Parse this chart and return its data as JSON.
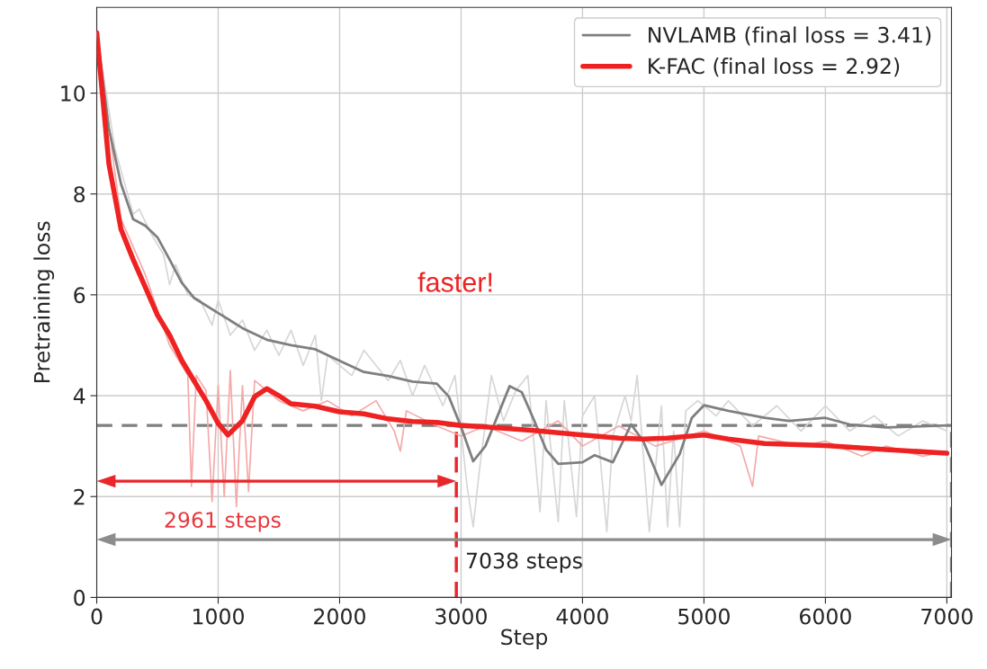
{
  "chart_data": {
    "type": "line",
    "xlabel": "Step",
    "ylabel": "Pretraining loss",
    "xlim": [
      0,
      7038
    ],
    "ylim": [
      0,
      11.7
    ],
    "xticks": [
      0,
      1000,
      2000,
      3000,
      4000,
      5000,
      6000,
      7000
    ],
    "yticks": [
      0,
      2,
      4,
      6,
      8,
      10
    ],
    "grid": true,
    "legend": "top right",
    "line_style": "solid",
    "marker": "none",
    "series": [
      {
        "color": "#d6d6d6",
        "x": [
          0,
          150,
          300,
          350,
          450,
          550,
          600,
          650,
          750,
          850,
          950,
          1000,
          1100,
          1200,
          1300,
          1400,
          1500,
          1600,
          1700,
          1800,
          1850,
          1900,
          2100,
          2200,
          2400,
          2500,
          2600,
          2700,
          2850,
          2950,
          3050,
          3100,
          3150,
          3250,
          3350,
          3450,
          3550,
          3650,
          3700,
          3800,
          3850,
          3950,
          4000,
          4100,
          4200,
          4250,
          4350,
          4400,
          4450,
          4550,
          4650,
          4700,
          4750,
          4800,
          4850,
          4950,
          5100,
          5200,
          5400,
          5600,
          5800,
          6000,
          6200,
          6400,
          6600,
          6800,
          7000
        ],
        "values": [
          11.2,
          8.9,
          7.6,
          7.7,
          7.2,
          6.8,
          6.2,
          6.6,
          6.0,
          5.9,
          5.4,
          5.9,
          5.2,
          5.5,
          4.9,
          5.3,
          4.8,
          5.3,
          4.6,
          5.2,
          3.9,
          4.8,
          4.4,
          4.9,
          4.3,
          4.7,
          4.0,
          4.6,
          3.8,
          4.4,
          2.2,
          1.4,
          2.5,
          4.4,
          3.5,
          4.1,
          4.4,
          1.7,
          3.9,
          1.5,
          3.9,
          1.6,
          3.6,
          4.0,
          1.3,
          3.2,
          4.0,
          3.5,
          4.4,
          1.3,
          3.8,
          1.4,
          3.3,
          1.4,
          3.7,
          3.9,
          3.6,
          3.9,
          3.4,
          3.8,
          3.3,
          3.8,
          3.3,
          3.6,
          3.2,
          3.5,
          3.3
        ]
      },
      {
        "color": "#f5a8a8",
        "x": [
          0,
          200,
          400,
          600,
          750,
          780,
          820,
          900,
          950,
          1000,
          1050,
          1100,
          1150,
          1200,
          1250,
          1300,
          1500,
          1700,
          1900,
          2100,
          2300,
          2450,
          2500,
          2550,
          2800,
          3000,
          3200,
          3500,
          3800,
          4000,
          4300,
          4600,
          5000,
          5300,
          5400,
          5450,
          5800,
          6000,
          6300,
          6500,
          6800,
          7000
        ],
        "values": [
          11.2,
          7.5,
          6.4,
          5.0,
          4.4,
          2.2,
          4.4,
          4.1,
          1.9,
          4.2,
          2.0,
          4.5,
          1.8,
          4.2,
          2.1,
          4.3,
          3.9,
          3.7,
          3.9,
          3.6,
          3.9,
          3.3,
          2.9,
          3.7,
          3.4,
          3.2,
          3.4,
          3.1,
          3.5,
          3.0,
          3.4,
          3.0,
          3.3,
          3.0,
          2.2,
          3.2,
          3.0,
          3.1,
          2.8,
          3.0,
          2.8,
          2.9
        ]
      },
      {
        "name": "NVLAMB (final loss = 3.41)",
        "color": "#7f7f7f",
        "x": [
          0,
          100,
          200,
          300,
          400,
          500,
          600,
          700,
          800,
          1000,
          1200,
          1400,
          1600,
          1800,
          2000,
          2200,
          2400,
          2600,
          2800,
          2900,
          3000,
          3100,
          3200,
          3400,
          3500,
          3600,
          3700,
          3800,
          4000,
          4100,
          4250,
          4400,
          4500,
          4650,
          4800,
          4900,
          5000,
          5200,
          5500,
          5700,
          6000,
          6200,
          6500,
          7000
        ],
        "values": [
          11.2,
          9.3,
          8.2,
          7.5,
          7.37,
          7.14,
          6.7,
          6.24,
          5.94,
          5.64,
          5.34,
          5.11,
          5.0,
          4.92,
          4.69,
          4.47,
          4.39,
          4.28,
          4.24,
          3.98,
          3.38,
          2.7,
          3.0,
          4.19,
          4.07,
          3.52,
          2.93,
          2.65,
          2.68,
          2.82,
          2.68,
          3.43,
          3.1,
          2.23,
          2.84,
          3.56,
          3.81,
          3.7,
          3.56,
          3.5,
          3.56,
          3.43,
          3.37,
          3.41
        ]
      },
      {
        "name": "K-FAC (final loss = 2.92)",
        "color": "#ee2222",
        "x": [
          0,
          100,
          200,
          300,
          400,
          500,
          600,
          700,
          800,
          900,
          1000,
          1080,
          1200,
          1300,
          1400,
          1500,
          1600,
          1800,
          2000,
          2200,
          2400,
          2600,
          2800,
          3000,
          3200,
          3600,
          4000,
          4300,
          4500,
          4700,
          5000,
          5200,
          5500,
          6000,
          6500,
          7000
        ],
        "values": [
          11.2,
          8.6,
          7.3,
          6.7,
          6.15,
          5.6,
          5.2,
          4.7,
          4.3,
          3.9,
          3.45,
          3.22,
          3.5,
          3.98,
          4.14,
          4.0,
          3.84,
          3.79,
          3.68,
          3.64,
          3.54,
          3.49,
          3.47,
          3.41,
          3.38,
          3.31,
          3.22,
          3.16,
          3.14,
          3.16,
          3.22,
          3.14,
          3.05,
          3.01,
          2.93,
          2.86
        ]
      }
    ],
    "ref_lines": [
      {
        "axis": "y",
        "value": 3.41,
        "color": "#7f7f7f",
        "line_style": "dashed"
      },
      {
        "axis": "x",
        "value": 2961,
        "color": "#e8262b",
        "line_style": "dashed"
      },
      {
        "axis": "x",
        "value": 7038,
        "color": "#8c8c8c",
        "line_style": "dashed"
      }
    ],
    "annotations": [
      "2961 steps",
      "7038 steps",
      "faster!"
    ]
  }
}
